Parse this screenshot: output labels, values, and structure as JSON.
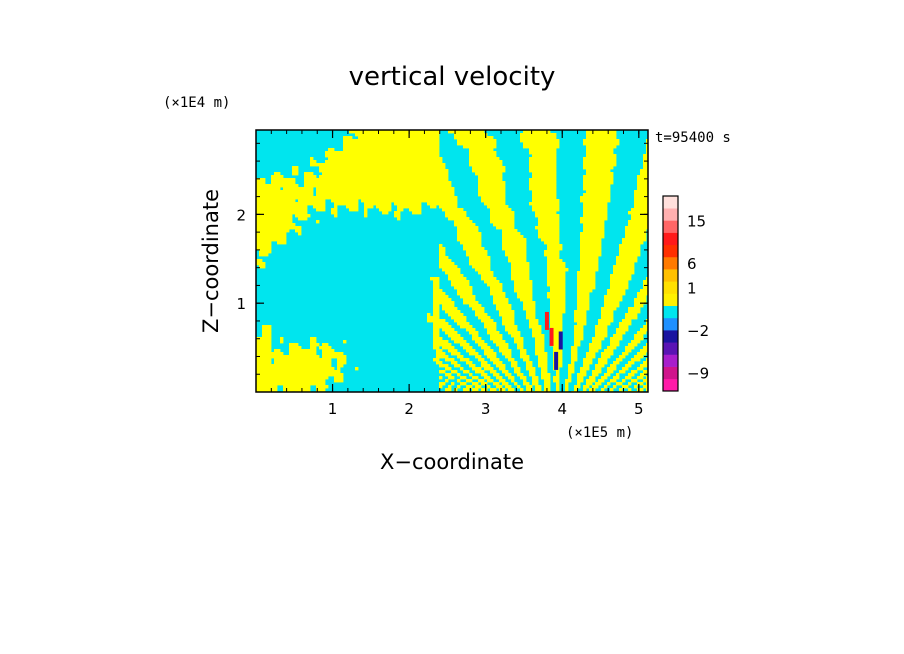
{
  "chart_data": {
    "type": "heatmap",
    "title": "vertical velocity",
    "xlabel": "X−coordinate",
    "ylabel": "Z−coordinate",
    "x_multiplier": "(×1E5 m)",
    "y_multiplier": "(×1E4 m)",
    "time_label": "t=95400 s",
    "xlim": [
      0,
      5.12
    ],
    "ylim": [
      0,
      2.95
    ],
    "x_ticks": [
      1,
      2,
      3,
      4,
      5
    ],
    "y_ticks": [
      1,
      2
    ],
    "colorbar": {
      "colors": [
        "#ff1aa8",
        "#d0148c",
        "#a81ecc",
        "#5a14b4",
        "#1a14a0",
        "#1e90ff",
        "#00e5ee",
        "#fff000",
        "#ffe000",
        "#ffc000",
        "#ff7a00",
        "#ff3000",
        "#ff1a1a",
        "#ff6666",
        "#ffb0b0",
        "#ffe0dc"
      ],
      "labeled_ticks": [
        {
          "label": "−9",
          "slot": 1.5
        },
        {
          "label": "−2",
          "slot": 5.0
        },
        {
          "label": "1",
          "slot": 8.5
        },
        {
          "label": "6",
          "slot": 10.5
        },
        {
          "label": "15",
          "slot": 14.0
        }
      ]
    },
    "field_colors": {
      "negative": "#00e5ee",
      "positive": "#ffff00",
      "strong_positive": "#ff1a1a",
      "strong_negative": "#1a14a0"
    }
  }
}
